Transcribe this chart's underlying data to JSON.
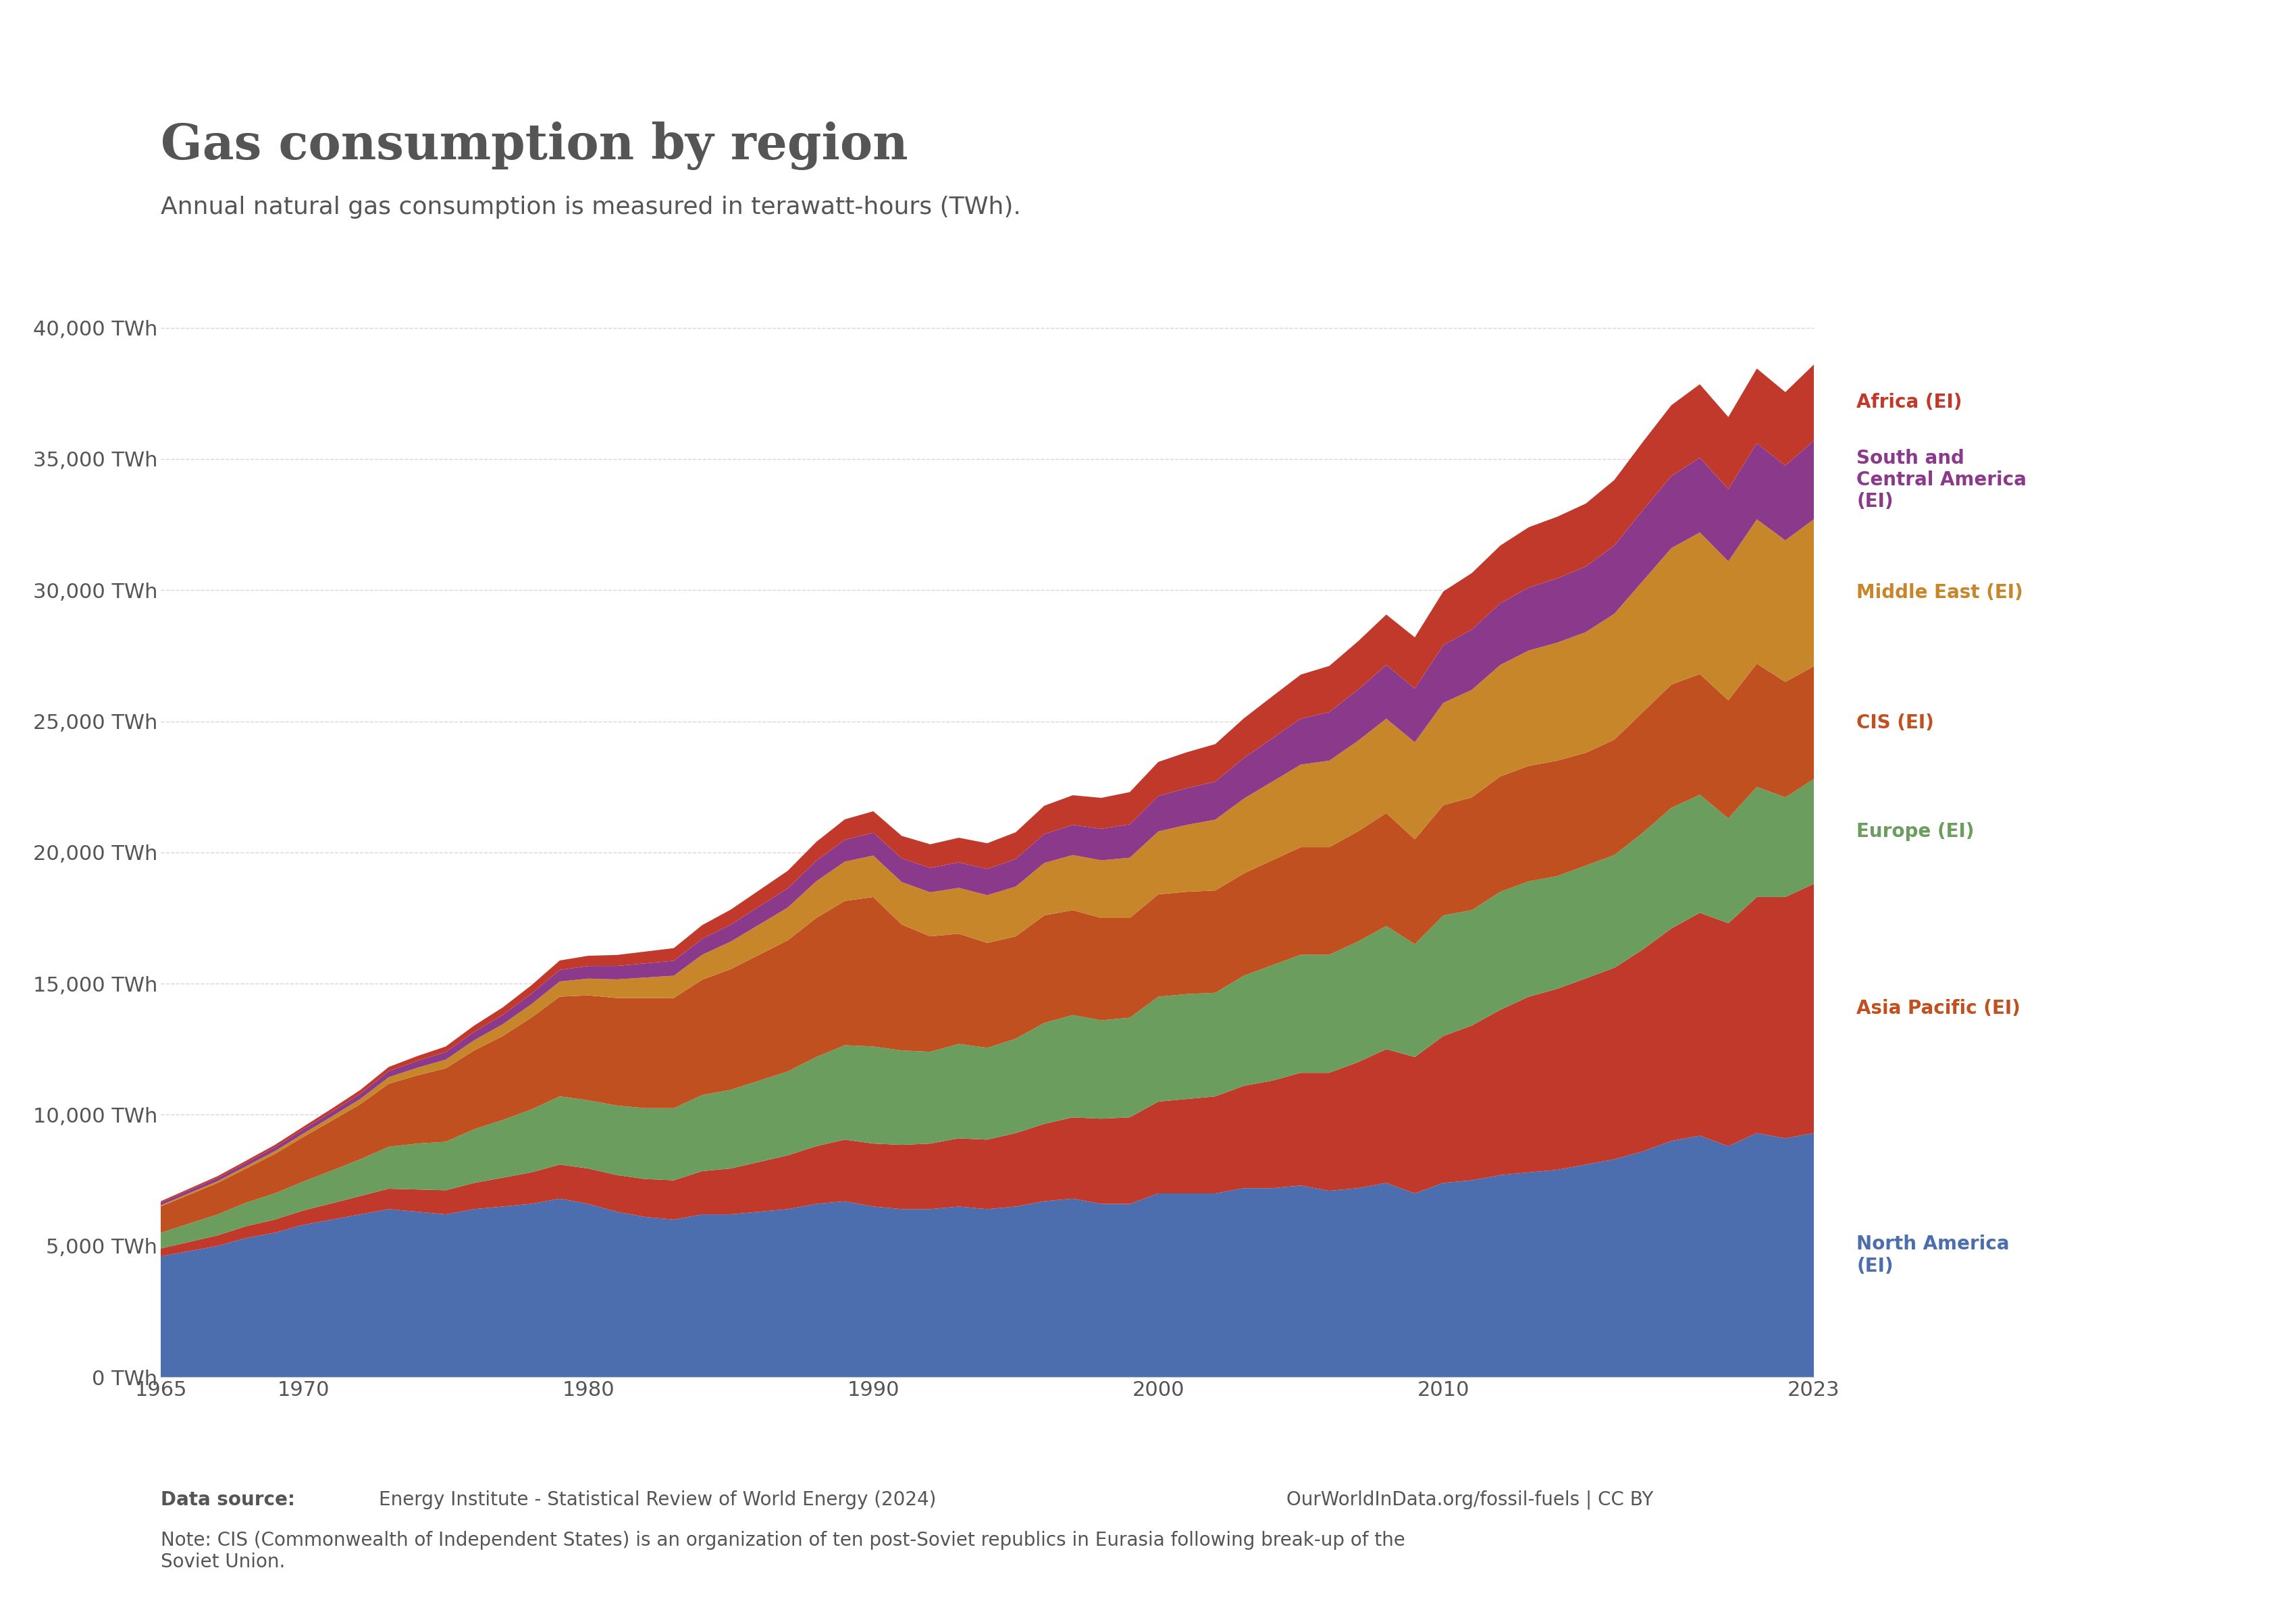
{
  "title": "Gas consumption by region",
  "subtitle": "Annual natural gas consumption is measured in terawatt-hours (TWh).",
  "datasource": "Data source: Energy Institute - Statistical Review of World Energy (2024)",
  "note": "Note: CIS (Commonwealth of Independent States) is an organization of ten post-Soviet republics in Eurasia following break-up of the\nSoviet Union.",
  "credit": "OurWorldInData.org/fossil-fuels | CC BY",
  "years": [
    1965,
    1966,
    1967,
    1968,
    1969,
    1970,
    1971,
    1972,
    1973,
    1974,
    1975,
    1976,
    1977,
    1978,
    1979,
    1980,
    1981,
    1982,
    1983,
    1984,
    1985,
    1986,
    1987,
    1988,
    1989,
    1990,
    1991,
    1992,
    1993,
    1994,
    1995,
    1996,
    1997,
    1998,
    1999,
    2000,
    2001,
    2002,
    2003,
    2004,
    2005,
    2006,
    2007,
    2008,
    2009,
    2010,
    2011,
    2012,
    2013,
    2014,
    2015,
    2016,
    2017,
    2018,
    2019,
    2020,
    2021,
    2022,
    2023
  ],
  "regions": {
    "North America (EI)": {
      "color": "#4C6EAF",
      "values": [
        4600,
        4800,
        5000,
        5300,
        5500,
        5800,
        6000,
        6200,
        6400,
        6300,
        6200,
        6400,
        6500,
        6600,
        6800,
        6600,
        6300,
        6100,
        6000,
        6200,
        6200,
        6300,
        6400,
        6600,
        6700,
        6500,
        6400,
        6400,
        6500,
        6400,
        6500,
        6700,
        6800,
        6600,
        6600,
        7000,
        7000,
        7000,
        7200,
        7200,
        7300,
        7100,
        7200,
        7400,
        7000,
        7400,
        7500,
        7700,
        7800,
        7900,
        8100,
        8300,
        8600,
        9000,
        9200,
        8800,
        9300,
        9100,
        9300
      ]
    },
    "Asia Pacific (EI)": {
      "color": "#C0392B",
      "values": [
        300,
        350,
        400,
        450,
        500,
        550,
        620,
        700,
        780,
        850,
        920,
        1000,
        1100,
        1200,
        1300,
        1350,
        1400,
        1450,
        1500,
        1650,
        1750,
        1900,
        2050,
        2200,
        2350,
        2400,
        2450,
        2500,
        2600,
        2650,
        2800,
        2950,
        3100,
        3250,
        3300,
        3500,
        3600,
        3700,
        3900,
        4100,
        4300,
        4500,
        4800,
        5100,
        5200,
        5600,
        5900,
        6300,
        6700,
        6900,
        7100,
        7300,
        7700,
        8100,
        8500,
        8500,
        9000,
        9200,
        9500
      ]
    },
    "Europe (EI)": {
      "color": "#6B9E5E",
      "values": [
        600,
        700,
        800,
        900,
        1000,
        1100,
        1250,
        1400,
        1600,
        1750,
        1850,
        2050,
        2200,
        2400,
        2600,
        2600,
        2650,
        2700,
        2750,
        2900,
        3000,
        3100,
        3200,
        3400,
        3600,
        3700,
        3600,
        3500,
        3600,
        3500,
        3600,
        3850,
        3900,
        3750,
        3800,
        4000,
        4000,
        3950,
        4200,
        4400,
        4500,
        4500,
        4600,
        4700,
        4300,
        4600,
        4400,
        4500,
        4400,
        4300,
        4300,
        4300,
        4450,
        4600,
        4500,
        4000,
        4200,
        3800,
        4000
      ]
    },
    "CIS (EI)": {
      "color": "#C05020",
      "values": [
        1000,
        1100,
        1200,
        1300,
        1500,
        1700,
        1900,
        2100,
        2400,
        2600,
        2800,
        3000,
        3200,
        3500,
        3800,
        4000,
        4100,
        4200,
        4200,
        4400,
        4600,
        4800,
        5000,
        5300,
        5500,
        5700,
        4800,
        4400,
        4200,
        4000,
        3900,
        4100,
        4000,
        3900,
        3800,
        3900,
        3900,
        3900,
        3900,
        4000,
        4100,
        4100,
        4200,
        4300,
        4000,
        4200,
        4300,
        4400,
        4400,
        4400,
        4300,
        4400,
        4600,
        4700,
        4600,
        4500,
        4700,
        4400,
        4300
      ]
    },
    "Middle East (EI)": {
      "color": "#C8862A",
      "values": [
        50,
        60,
        70,
        90,
        110,
        130,
        160,
        200,
        250,
        290,
        330,
        390,
        450,
        510,
        580,
        640,
        710,
        780,
        850,
        950,
        1050,
        1150,
        1250,
        1400,
        1500,
        1580,
        1620,
        1680,
        1750,
        1820,
        1900,
        2000,
        2100,
        2200,
        2300,
        2400,
        2550,
        2700,
        2850,
        3000,
        3150,
        3300,
        3450,
        3600,
        3700,
        3900,
        4100,
        4250,
        4400,
        4500,
        4600,
        4800,
        5000,
        5200,
        5400,
        5300,
        5500,
        5400,
        5600
      ]
    },
    "South and Central America (EI)": {
      "color": "#8B3A8B",
      "values": [
        100,
        110,
        120,
        130,
        145,
        160,
        180,
        200,
        230,
        260,
        290,
        320,
        360,
        400,
        440,
        480,
        510,
        540,
        570,
        610,
        650,
        690,
        730,
        780,
        830,
        870,
        900,
        930,
        970,
        1000,
        1050,
        1100,
        1150,
        1200,
        1270,
        1350,
        1400,
        1450,
        1550,
        1650,
        1750,
        1850,
        1950,
        2050,
        2050,
        2200,
        2300,
        2350,
        2400,
        2450,
        2500,
        2600,
        2700,
        2750,
        2850,
        2750,
        2900,
        2850,
        3000
      ]
    },
    "Africa (EI)": {
      "color": "#C0392B",
      "values": [
        50,
        60,
        70,
        80,
        90,
        100,
        120,
        140,
        160,
        185,
        210,
        240,
        280,
        320,
        360,
        390,
        420,
        450,
        480,
        520,
        570,
        620,
        670,
        720,
        780,
        820,
        860,
        900,
        940,
        980,
        1020,
        1080,
        1130,
        1180,
        1230,
        1300,
        1370,
        1430,
        1510,
        1600,
        1680,
        1760,
        1840,
        1920,
        1950,
        2050,
        2150,
        2200,
        2300,
        2350,
        2400,
        2500,
        2600,
        2700,
        2800,
        2750,
        2850,
        2800,
        2900
      ]
    }
  },
  "ylim": [
    0,
    42000
  ],
  "yticks": [
    0,
    5000,
    10000,
    15000,
    20000,
    25000,
    30000,
    35000,
    40000
  ],
  "ytick_labels": [
    "0 TWh",
    "5,000 TWh",
    "10,000 TWh",
    "15,000 TWh",
    "20,000 TWh",
    "25,000 TWh",
    "30,000 TWh",
    "35,000 TWh",
    "40,000 TWh"
  ],
  "xticks": [
    1965,
    1970,
    1980,
    1990,
    2000,
    2010,
    2023
  ],
  "background_color": "#ffffff",
  "owid_box_color": "#003366",
  "owid_text_color": "#ffffff",
  "title_color": "#555555",
  "subtitle_color": "#555555",
  "label_colors": {
    "Africa (EI)": "#C0392B",
    "South and Central America (EI)": "#8B3A8B",
    "Middle East (EI)": "#C8862A",
    "CIS (EI)": "#C05020",
    "Europe (EI)": "#6B9E5E",
    "Asia Pacific (EI)": "#C0392B",
    "North America (EI)": "#4C6EAF"
  }
}
